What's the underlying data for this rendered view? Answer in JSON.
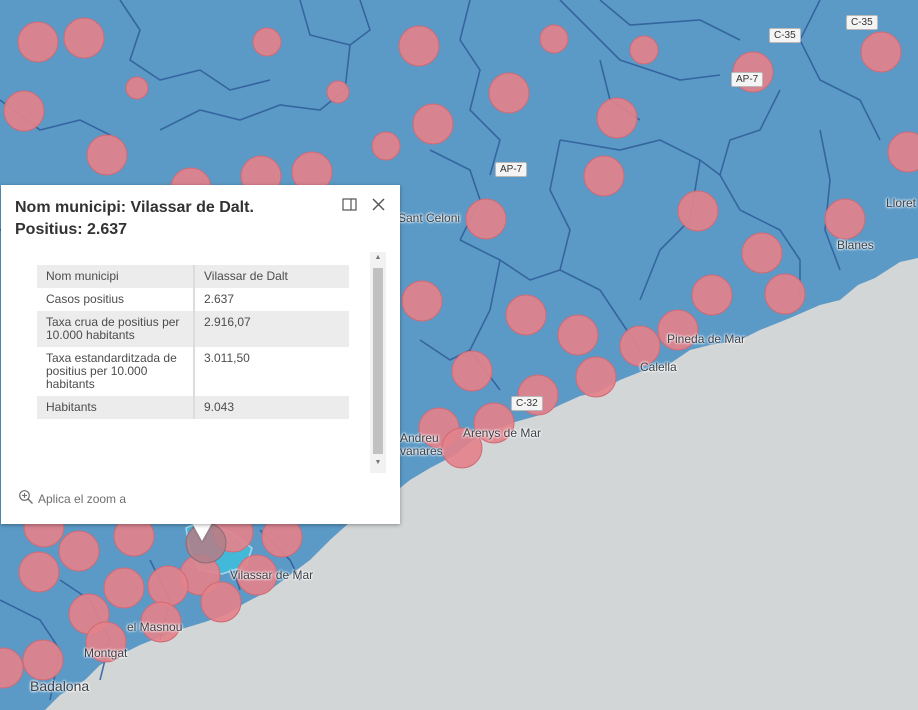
{
  "map": {
    "colors": {
      "land": "#5b9ac7",
      "sea": "#d3d6d7",
      "boundary": "#2f5c99",
      "circle": "#e3828b",
      "circle_stroke": "#d06a75",
      "selected": "#42b9d8"
    },
    "places": {
      "sant_celoni": "Sant Celoni",
      "lloret": "Lloret",
      "blanes": "Blanes",
      "pineda": "Pineda de Mar",
      "calella": "Calella",
      "arenys": "Arenys de Mar",
      "sant_andreu_1": "Andreu",
      "sant_andreu_2": "vanares",
      "vilassar_mar": "Vilassar de Mar",
      "masnou": "el Masnou",
      "montgat": "Montgat",
      "badalona": "Badalona"
    },
    "roads": {
      "c35_a": "C-35",
      "c35_b": "C-35",
      "ap7_a": "AP-7",
      "ap7_b": "AP-7",
      "c32": "C-32"
    }
  },
  "popup": {
    "title": "Nom municipi: Vilassar de Dalt. Positius: 2.637",
    "dock_icon": "dock-icon",
    "close_icon": "close-icon",
    "rows": [
      {
        "key": "Nom municipi",
        "value": "Vilassar de Dalt"
      },
      {
        "key": "Casos positius",
        "value": "2.637"
      },
      {
        "key": "Taxa crua de positius per 10.000 habitants",
        "value": "2.916,07"
      },
      {
        "key": "Taxa estandarditzada de positius per 10.000 habitants",
        "value": "3.011,50"
      },
      {
        "key": "Habitants",
        "value": "9.043"
      }
    ],
    "zoom_label": "Aplica el zoom a",
    "zoom_icon": "zoom-in-icon"
  }
}
